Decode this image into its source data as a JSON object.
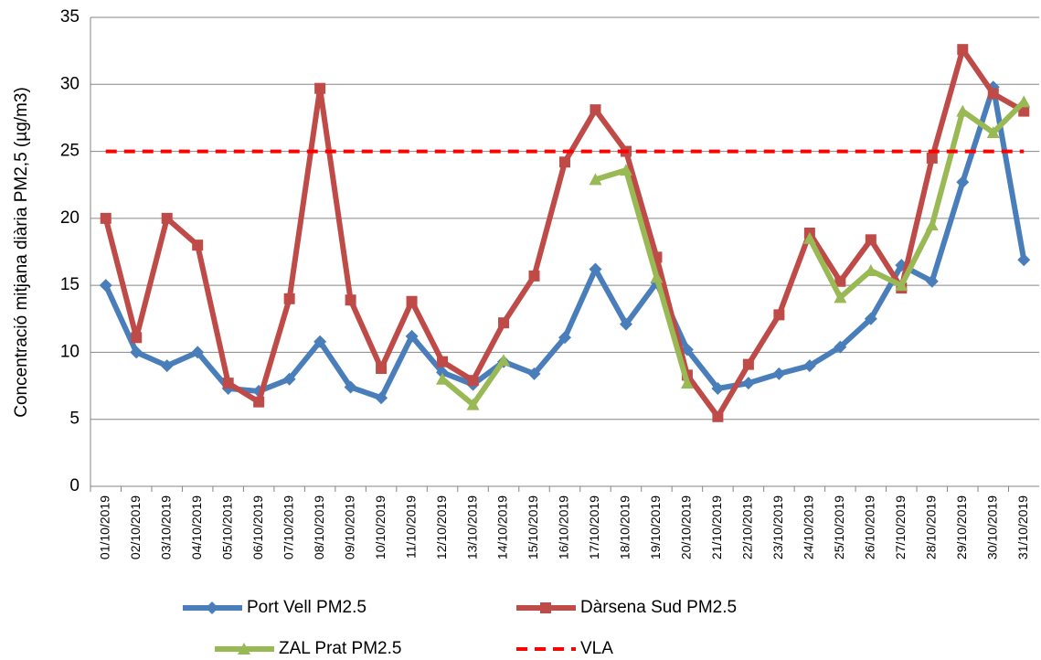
{
  "chart_data": {
    "type": "line",
    "y_label": "Concentració mitjana diària PM2,5 (µg/m3)",
    "categories": [
      "01/10/2019",
      "02/10/2019",
      "03/10/2019",
      "04/10/2019",
      "05/10/2019",
      "06/10/2019",
      "07/10/2019",
      "08/10/2019",
      "09/10/2019",
      "10/10/2019",
      "11/10/2019",
      "12/10/2019",
      "13/10/2019",
      "14/10/2019",
      "15/10/2019",
      "16/10/2019",
      "17/10/2019",
      "18/10/2019",
      "19/10/2019",
      "20/10/2019",
      "21/10/2019",
      "22/10/2019",
      "23/10/2019",
      "24/10/2019",
      "25/10/2019",
      "26/10/2019",
      "27/10/2019",
      "28/10/2019",
      "29/10/2019",
      "30/10/2019",
      "31/10/2019"
    ],
    "series": [
      {
        "name": "Port Vell PM2.5",
        "color": "#4a7ebb",
        "marker": "diamond",
        "dashed": false,
        "values": [
          15,
          10,
          9,
          10,
          7.3,
          7.1,
          8,
          10.8,
          7.4,
          6.6,
          11.2,
          8.5,
          7.6,
          9.3,
          8.4,
          11.1,
          16.2,
          12.1,
          15.2,
          10.2,
          7.3,
          7.7,
          8.4,
          9,
          10.4,
          12.5,
          16.5,
          15.3,
          22.7,
          29.8,
          16.9
        ]
      },
      {
        "name": "Dàrsena Sud PM2.5",
        "color": "#be4b48",
        "marker": "square",
        "dashed": false,
        "values": [
          20,
          11.1,
          20,
          18,
          7.7,
          6.3,
          14,
          29.7,
          13.9,
          8.8,
          13.8,
          9.3,
          7.9,
          12.2,
          15.7,
          24.2,
          28.1,
          25,
          17.1,
          8.3,
          5.2,
          9.1,
          12.8,
          18.9,
          15.3,
          18.4,
          14.8,
          24.5,
          32.6,
          29.3,
          28
        ]
      },
      {
        "name": "ZAL Prat PM2.5",
        "color": "#98b954",
        "marker": "triangle",
        "dashed": false,
        "values": [
          null,
          null,
          null,
          null,
          null,
          null,
          null,
          null,
          null,
          null,
          null,
          8,
          6.1,
          9.4,
          null,
          null,
          22.9,
          23.6,
          15.6,
          7.7,
          null,
          null,
          null,
          18.5,
          14.1,
          16.1,
          15,
          19.5,
          28,
          26.4,
          28.7
        ]
      },
      {
        "name": "VLA",
        "color": "#ff0000",
        "marker": "none",
        "dashed": true,
        "values": [
          25,
          25,
          25,
          25,
          25,
          25,
          25,
          25,
          25,
          25,
          25,
          25,
          25,
          25,
          25,
          25,
          25,
          25,
          25,
          25,
          25,
          25,
          25,
          25,
          25,
          25,
          25,
          25,
          25,
          25,
          25
        ]
      }
    ],
    "ylim": [
      0,
      35
    ],
    "yticks": [
      0,
      5,
      10,
      15,
      20,
      25,
      30,
      35
    ],
    "grid": true
  }
}
